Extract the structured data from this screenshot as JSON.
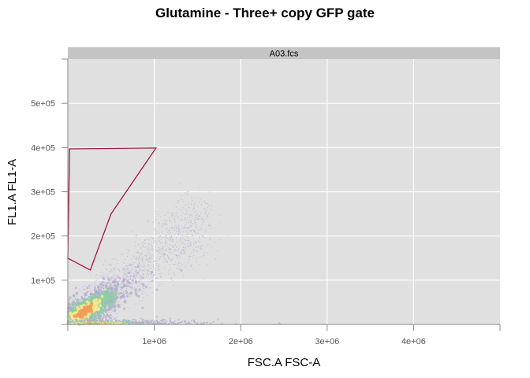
{
  "chart_data": {
    "type": "scatter",
    "title": "Glutamine - Three+ copy GFP gate",
    "panel_label": "A03.fcs",
    "xlabel": "FSC.A FSC-A",
    "ylabel": "FL1.A FL1-A",
    "xlim": [
      0,
      5000000
    ],
    "ylim": [
      0,
      600000
    ],
    "x_ticks": [
      {
        "value": 1000000,
        "label": "1e+06"
      },
      {
        "value": 2000000,
        "label": "2e+06"
      },
      {
        "value": 3000000,
        "label": "3e+06"
      },
      {
        "value": 4000000,
        "label": "4e+06"
      }
    ],
    "y_ticks": [
      {
        "value": 100000,
        "label": "1e+05"
      },
      {
        "value": 200000,
        "label": "2e+05"
      },
      {
        "value": 300000,
        "label": "3e+05"
      },
      {
        "value": 400000,
        "label": "4e+05"
      },
      {
        "value": 500000,
        "label": "5e+05"
      }
    ],
    "grid": true,
    "gate_polygon": [
      {
        "x": 20000,
        "y": 397000
      },
      {
        "x": 1020000,
        "y": 399000
      },
      {
        "x": 500000,
        "y": 250000
      },
      {
        "x": 260000,
        "y": 123000
      },
      {
        "x": 0,
        "y": 150000
      }
    ],
    "density": {
      "style": "smoothed scatter (density-coloured events)",
      "main_population": {
        "x_center": 200000,
        "y_center": 30000,
        "x_spread": 1300000,
        "y_max": 300000
      },
      "low_population": {
        "x_center": 300000,
        "y_center": 3000,
        "x_spread": 600000
      }
    },
    "colors": {
      "panel_bg": "#e0e0e0",
      "strip_bg": "#c4c4c4",
      "grid": "#ffffff",
      "gate": "#a01a3c",
      "density_low": "#b3a7cf",
      "density_mid": "#8ccfa4",
      "density_high": "#f6e98a",
      "density_peak": "#f39b5a"
    }
  }
}
